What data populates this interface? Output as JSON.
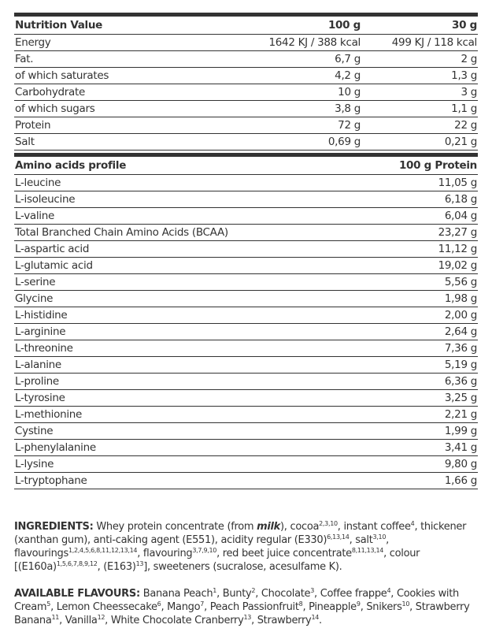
{
  "nutrition": {
    "headers": [
      "Nutrition Value",
      "100 g",
      "30 g"
    ],
    "rows": [
      [
        "Energy",
        "1642 KJ / 388 kcal",
        "499 KJ / 118 kcal"
      ],
      [
        "Fat.",
        "6,7 g",
        "2 g"
      ],
      [
        "of which saturates",
        "4,2 g",
        "1,3 g"
      ],
      [
        "Carbohydrate",
        "10 g",
        "3 g"
      ],
      [
        "of which sugars",
        "3,8 g",
        "1,1 g"
      ],
      [
        "Protein",
        "72 g",
        "22 g"
      ],
      [
        "Salt",
        "0,69 g",
        "0,21 g"
      ]
    ]
  },
  "amino": {
    "headers": [
      "Amino acids profile",
      "100 g Protein"
    ],
    "rows": [
      [
        "L-leucine",
        "11,05 g"
      ],
      [
        "L-isoleucine",
        "6,18 g"
      ],
      [
        "L-valine",
        "6,04 g"
      ],
      [
        "Total Branched Chain Amino Acids (BCAA)",
        "23,27 g"
      ],
      [
        "L-aspartic acid",
        "11,12 g"
      ],
      [
        "L-glutamic acid",
        "19,02 g"
      ],
      [
        "L-serine",
        "5,56 g"
      ],
      [
        "Glycine",
        "1,98 g"
      ],
      [
        "L-histidine",
        "2,00 g"
      ],
      [
        "L-arginine",
        "2,64 g"
      ],
      [
        "L-threonine",
        "7,36 g"
      ],
      [
        "L-alanine",
        "5,19 g"
      ],
      [
        "L-proline",
        "6,36 g"
      ],
      [
        "L-tyrosine",
        "3,25 g"
      ],
      [
        "L-methionine",
        "2,21 g"
      ],
      [
        "Cystine",
        "1,99 g"
      ],
      [
        "L-phenylalanine",
        "3,41 g"
      ],
      [
        "L-lysine",
        "9,80 g"
      ],
      [
        "L-tryptophane",
        "1,66 g"
      ]
    ]
  },
  "ingredients": {
    "label": "INGREDIENTS:",
    "parts": [
      [
        "Whey protein concentrate (from ",
        ""
      ],
      [
        "milk",
        "b"
      ],
      [
        "), cocoa",
        ""
      ],
      [
        "2,3,10",
        "s"
      ],
      [
        ", instant coffee",
        ""
      ],
      [
        "4",
        "s"
      ],
      [
        ", thickener (xanthan gum), anti-caking agent (E551), acidity regular (E330)",
        ""
      ],
      [
        "6,13,14",
        "s"
      ],
      [
        ", salt",
        ""
      ],
      [
        "3,10",
        "s"
      ],
      [
        ", flavourings",
        ""
      ],
      [
        "1,2,4,5,6,8,11,12,13,14",
        "s"
      ],
      [
        ", flavouring",
        ""
      ],
      [
        "3,7,9,10",
        "s"
      ],
      [
        ", red beet juice concentrate",
        ""
      ],
      [
        "8,11,13,14",
        "s"
      ],
      [
        ", colour [(E160a)",
        ""
      ],
      [
        "1,5,6,7,8,9,12",
        "s"
      ],
      [
        ", (E163)",
        ""
      ],
      [
        "13",
        "s"
      ],
      [
        "], sweeteners (sucralose, acesulfame K).",
        ""
      ]
    ]
  },
  "flavours": {
    "label": "AVAILABLE FLAVOURS:",
    "parts": [
      [
        "Banana Peach",
        ""
      ],
      [
        "1",
        "s"
      ],
      [
        ", Bunty",
        ""
      ],
      [
        "2",
        "s"
      ],
      [
        ", Chocolate",
        ""
      ],
      [
        "3",
        "s"
      ],
      [
        ", Coffee frappe",
        ""
      ],
      [
        "4",
        "s"
      ],
      [
        ", Cookies with Cream",
        ""
      ],
      [
        "5",
        "s"
      ],
      [
        ", Lemon Cheessecake",
        ""
      ],
      [
        "6",
        "s"
      ],
      [
        ", Mango",
        ""
      ],
      [
        "7",
        "s"
      ],
      [
        ", Peach Passionfruit",
        ""
      ],
      [
        "8",
        "s"
      ],
      [
        ", Pineapple",
        ""
      ],
      [
        "9",
        "s"
      ],
      [
        ", Snikers",
        ""
      ],
      [
        "10",
        "s"
      ],
      [
        ", Strawberry Banana",
        ""
      ],
      [
        "11",
        "s"
      ],
      [
        ", Vanilla",
        ""
      ],
      [
        "12",
        "s"
      ],
      [
        ", White Chocolate Cranberry",
        ""
      ],
      [
        "13",
        "s"
      ],
      [
        ", Strawberry",
        ""
      ],
      [
        "14",
        "s"
      ],
      [
        ".",
        ""
      ]
    ]
  }
}
